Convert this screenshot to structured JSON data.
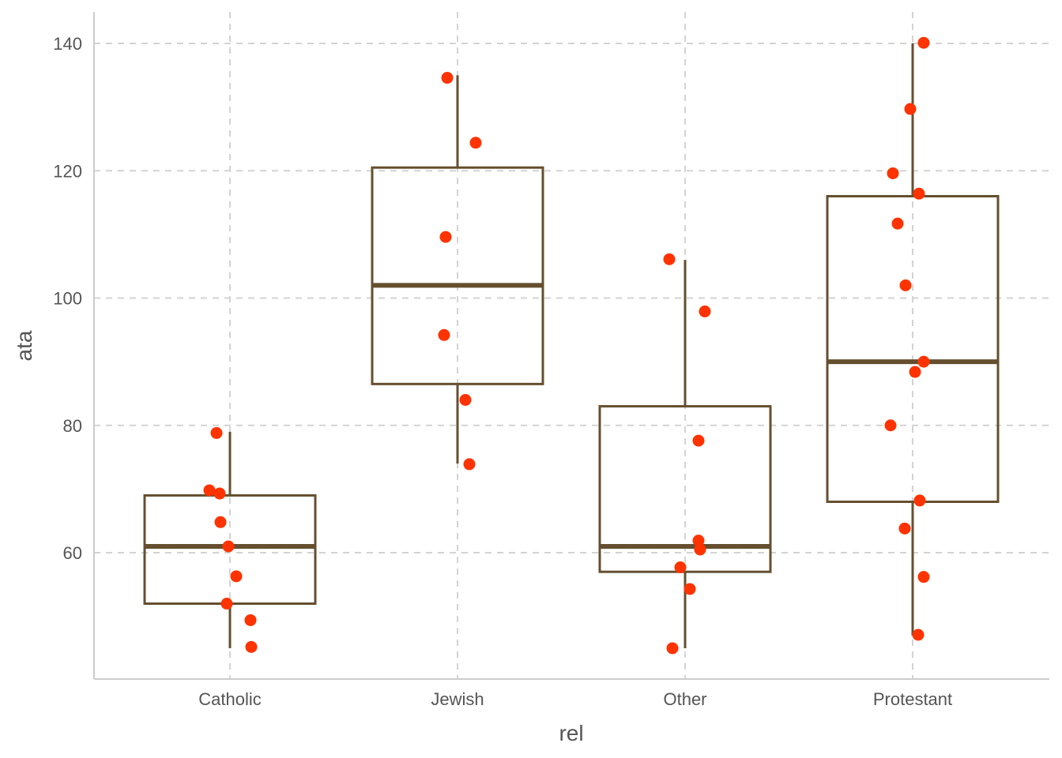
{
  "chart_data": {
    "type": "box",
    "xlabel": "rel",
    "ylabel": "ata",
    "categories": [
      "Catholic",
      "Jewish",
      "Other",
      "Protestant"
    ],
    "ylim": [
      40,
      145
    ],
    "y_ticks": [
      60,
      80,
      100,
      120,
      140
    ],
    "y_tick_labels": [
      "60",
      "80",
      "100",
      "120",
      "140"
    ],
    "grid": true,
    "colors": {
      "box": "#654f2f",
      "points": "#ff3300",
      "grid": "#d3d3d3",
      "axis": "#cccccc",
      "text": "#555555"
    },
    "boxes": [
      {
        "category": "Catholic",
        "min": 45,
        "q1": 52,
        "median": 61,
        "q3": 69,
        "max": 79
      },
      {
        "category": "Jewish",
        "min": 74,
        "q1": 86.5,
        "median": 102,
        "q3": 120.5,
        "max": 135
      },
      {
        "category": "Other",
        "min": 45,
        "q1": 57,
        "median": 61,
        "q3": 83,
        "max": 106
      },
      {
        "category": "Protestant",
        "min": 47,
        "q1": 68,
        "median": 90,
        "q3": 116,
        "max": 140
      }
    ],
    "points": [
      {
        "category": "Catholic",
        "values": [
          78.8,
          69.8,
          69.3,
          64.8,
          61.0,
          56.3,
          52.0,
          49.4,
          45.2
        ]
      },
      {
        "category": "Jewish",
        "values": [
          134.6,
          124.4,
          109.6,
          94.2,
          84.0,
          73.9
        ]
      },
      {
        "category": "Other",
        "values": [
          106.1,
          97.9,
          77.6,
          61.9,
          60.5,
          57.7,
          54.3,
          45.0
        ]
      },
      {
        "category": "Protestant",
        "values": [
          140.1,
          129.7,
          119.6,
          116.4,
          111.7,
          102.0,
          90.0,
          88.4,
          80.0,
          68.2,
          63.8,
          56.2,
          47.1
        ]
      }
    ]
  }
}
